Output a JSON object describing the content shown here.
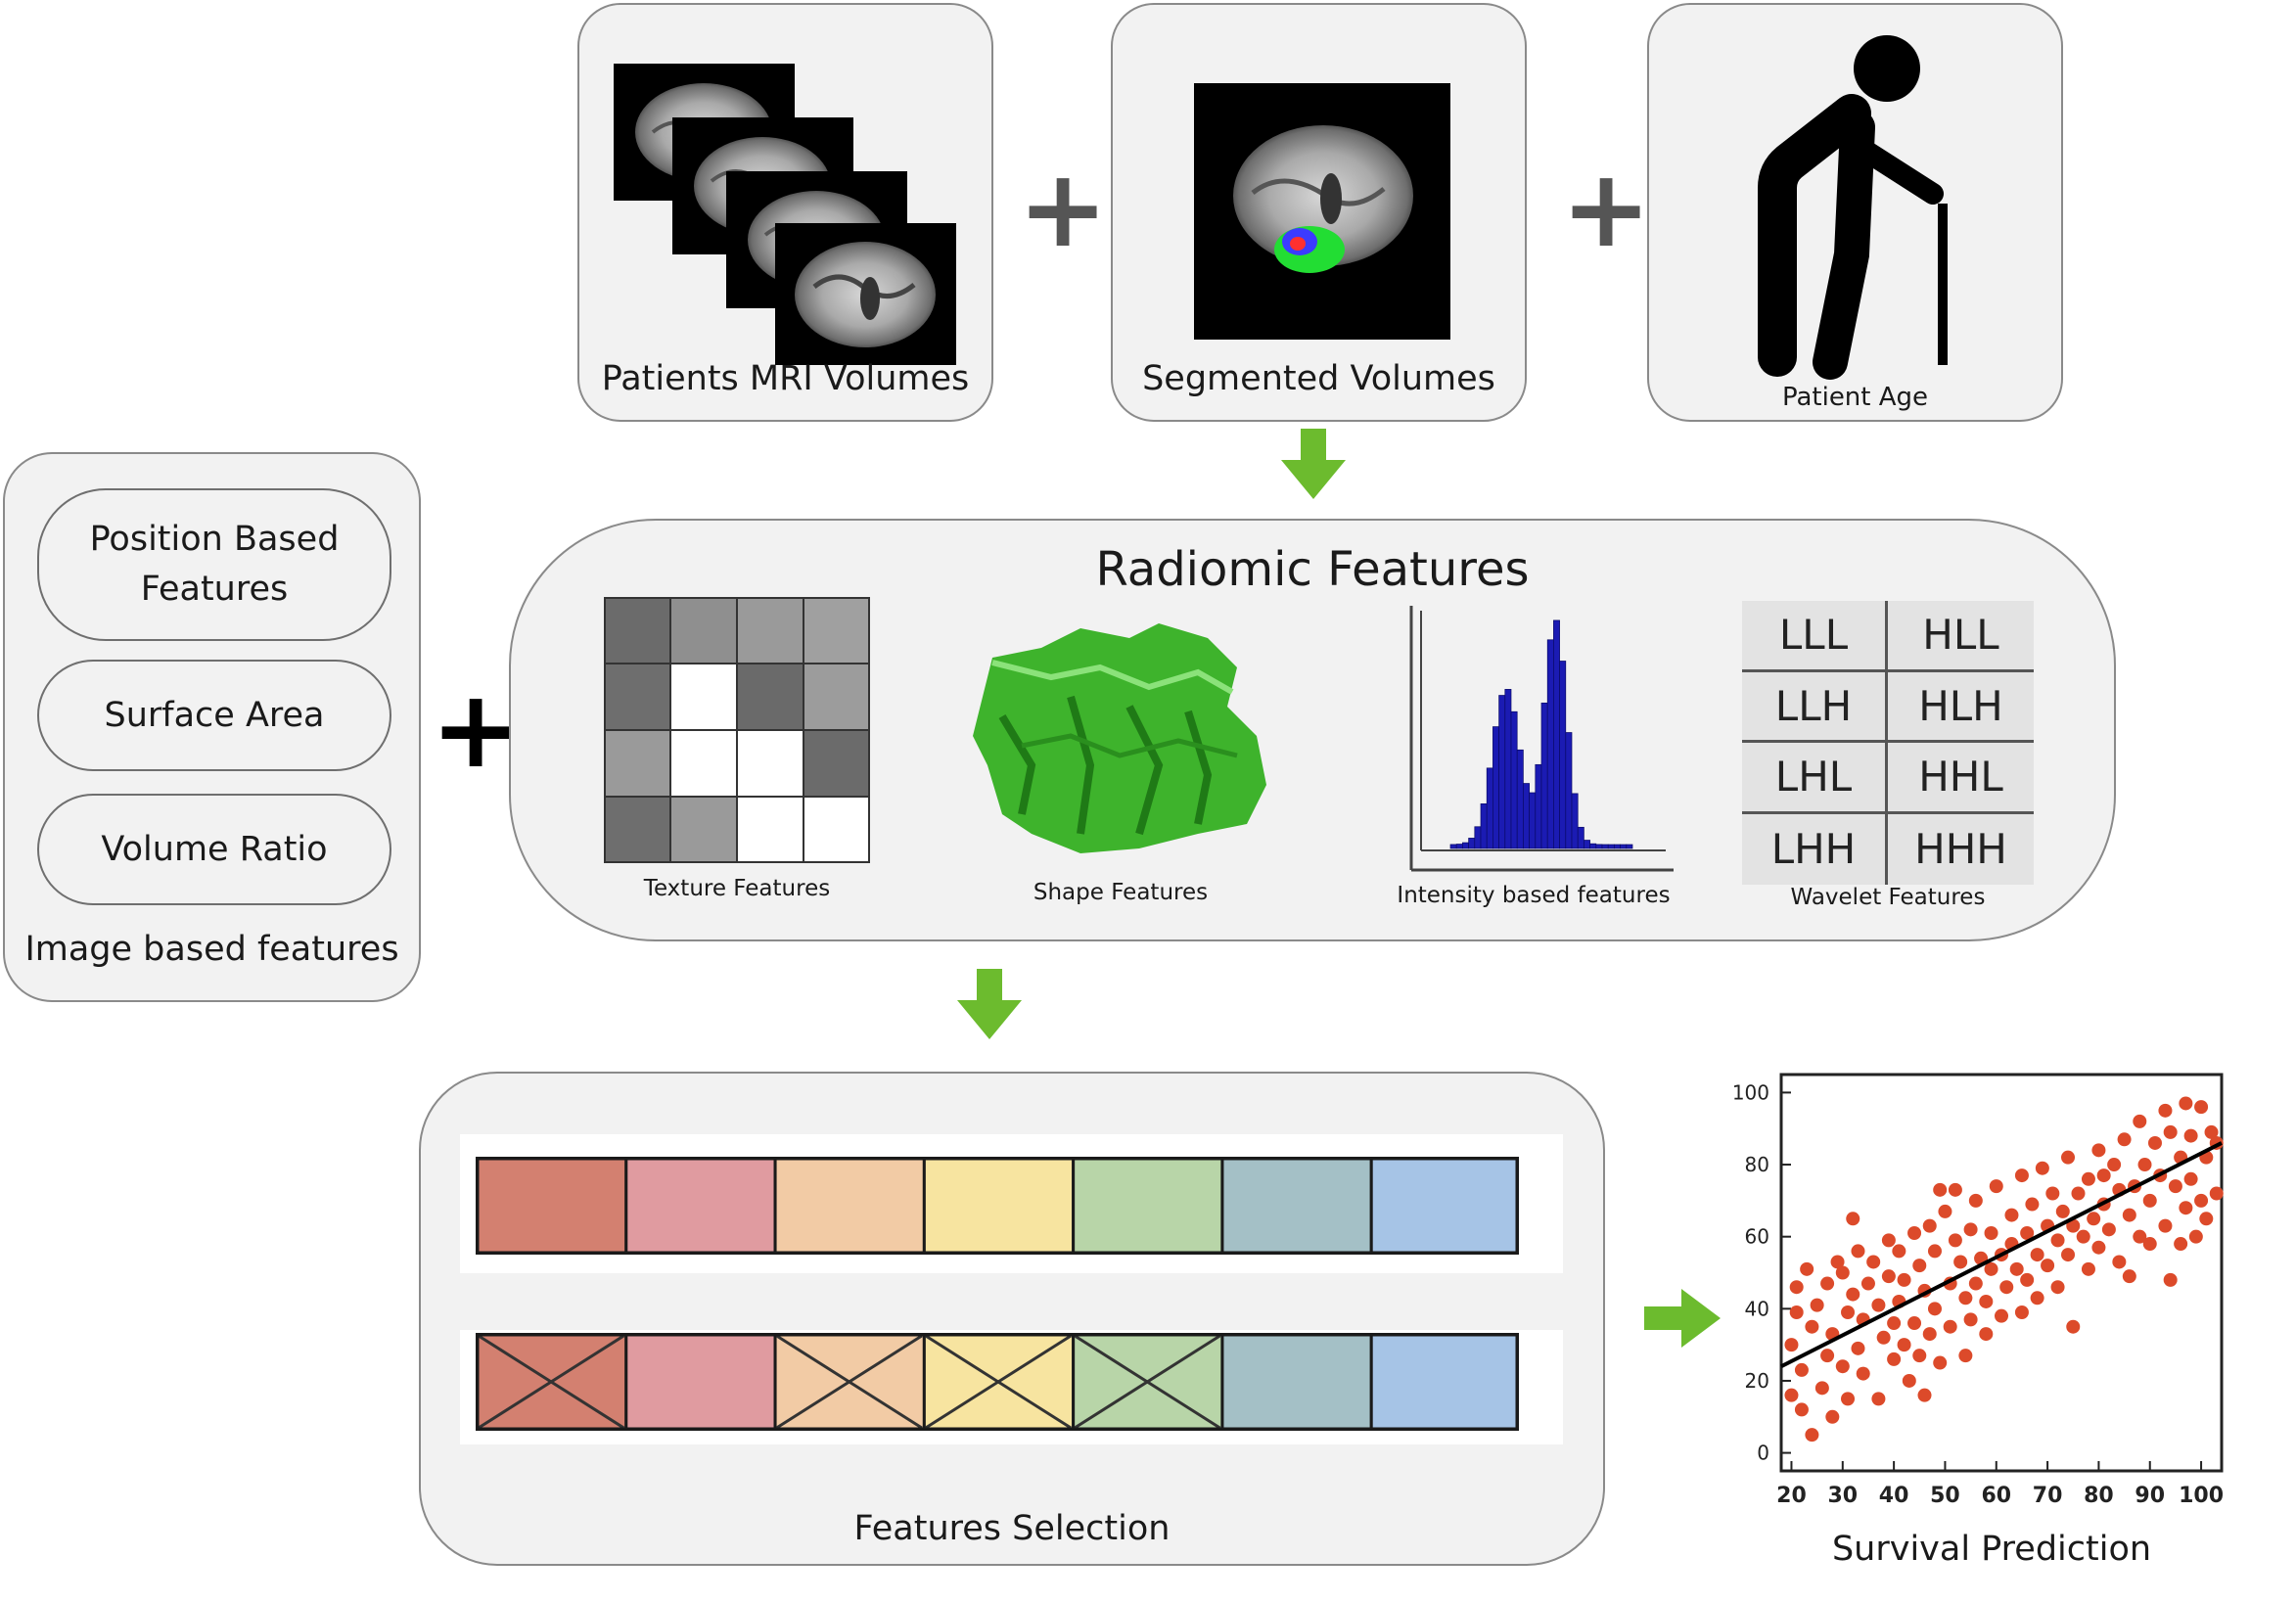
{
  "top_panels": {
    "mri_caption": "Patients MRI Volumes",
    "segmented_caption": "Segmented Volumes",
    "age_caption": "Patient Age"
  },
  "radiomic": {
    "title": "Radiomic Features",
    "texture_caption": "Texture Features",
    "shape_caption": "Shape Features",
    "intensity_caption": "Intensity based features",
    "wavelet_caption": "Wavelet Features",
    "wavelet_labels": [
      "LLL",
      "HLL",
      "LLH",
      "HLH",
      "LHL",
      "HHL",
      "LHH",
      "HHH"
    ]
  },
  "image_based": {
    "items": [
      "Position Based\nFeatures",
      "Surface Area",
      "Volume Ratio"
    ],
    "caption": "Image based features"
  },
  "selection": {
    "caption": "Features Selection",
    "colors": [
      "#d38070",
      "#e09ba0",
      "#f2cba5",
      "#f7e4a0",
      "#b8d5a8",
      "#a4c0c6",
      "#a6c4e6"
    ],
    "row2_crossed": [
      true,
      false,
      true,
      true,
      true,
      false,
      false
    ]
  },
  "prediction": {
    "caption": "Survival Prediction"
  },
  "chart_data": {
    "type": "scatter",
    "title": "",
    "xlabel": "",
    "ylabel": "",
    "xlim": [
      18,
      104
    ],
    "ylim": [
      -5,
      105
    ],
    "xticks": [
      20,
      30,
      40,
      50,
      60,
      70,
      80,
      90,
      100
    ],
    "yticks": [
      0,
      20,
      40,
      60,
      80,
      100
    ],
    "point_color": "#dc4a2a",
    "trend_line": [
      [
        18,
        24
      ],
      [
        104,
        86
      ]
    ],
    "points": [
      [
        20,
        16
      ],
      [
        20,
        30
      ],
      [
        21,
        39
      ],
      [
        21,
        46
      ],
      [
        22,
        23
      ],
      [
        22,
        12
      ],
      [
        23,
        51
      ],
      [
        24,
        35
      ],
      [
        24,
        5
      ],
      [
        25,
        41
      ],
      [
        26,
        18
      ],
      [
        27,
        47
      ],
      [
        27,
        27
      ],
      [
        28,
        33
      ],
      [
        28,
        10
      ],
      [
        29,
        53
      ],
      [
        30,
        50
      ],
      [
        30,
        24
      ],
      [
        31,
        39
      ],
      [
        31,
        15
      ],
      [
        32,
        44
      ],
      [
        32,
        65
      ],
      [
        33,
        56
      ],
      [
        33,
        29
      ],
      [
        34,
        37
      ],
      [
        34,
        22
      ],
      [
        35,
        47
      ],
      [
        36,
        53
      ],
      [
        37,
        41
      ],
      [
        37,
        15
      ],
      [
        38,
        32
      ],
      [
        39,
        49
      ],
      [
        39,
        59
      ],
      [
        40,
        36
      ],
      [
        40,
        26
      ],
      [
        41,
        56
      ],
      [
        41,
        42
      ],
      [
        42,
        48
      ],
      [
        42,
        30
      ],
      [
        43,
        20
      ],
      [
        44,
        61
      ],
      [
        44,
        36
      ],
      [
        45,
        52
      ],
      [
        45,
        27
      ],
      [
        46,
        45
      ],
      [
        46,
        16
      ],
      [
        47,
        63
      ],
      [
        47,
        33
      ],
      [
        48,
        56
      ],
      [
        48,
        40
      ],
      [
        49,
        73
      ],
      [
        49,
        25
      ],
      [
        50,
        67
      ],
      [
        51,
        47
      ],
      [
        51,
        35
      ],
      [
        52,
        59
      ],
      [
        52,
        73
      ],
      [
        53,
        53
      ],
      [
        54,
        43
      ],
      [
        54,
        27
      ],
      [
        55,
        62
      ],
      [
        55,
        37
      ],
      [
        56,
        70
      ],
      [
        56,
        47
      ],
      [
        57,
        54
      ],
      [
        58,
        42
      ],
      [
        58,
        33
      ],
      [
        59,
        61
      ],
      [
        59,
        51
      ],
      [
        60,
        74
      ],
      [
        61,
        55
      ],
      [
        61,
        38
      ],
      [
        62,
        46
      ],
      [
        63,
        66
      ],
      [
        63,
        58
      ],
      [
        64,
        51
      ],
      [
        65,
        39
      ],
      [
        65,
        77
      ],
      [
        66,
        61
      ],
      [
        66,
        48
      ],
      [
        67,
        69
      ],
      [
        68,
        55
      ],
      [
        68,
        43
      ],
      [
        69,
        79
      ],
      [
        70,
        63
      ],
      [
        70,
        52
      ],
      [
        71,
        72
      ],
      [
        72,
        46
      ],
      [
        72,
        59
      ],
      [
        73,
        67
      ],
      [
        74,
        82
      ],
      [
        74,
        55
      ],
      [
        75,
        63
      ],
      [
        75,
        35
      ],
      [
        76,
        72
      ],
      [
        77,
        60
      ],
      [
        78,
        76
      ],
      [
        78,
        51
      ],
      [
        79,
        65
      ],
      [
        80,
        84
      ],
      [
        80,
        57
      ],
      [
        81,
        69
      ],
      [
        81,
        77
      ],
      [
        82,
        62
      ],
      [
        83,
        80
      ],
      [
        84,
        73
      ],
      [
        84,
        53
      ],
      [
        85,
        87
      ],
      [
        86,
        66
      ],
      [
        86,
        49
      ],
      [
        87,
        74
      ],
      [
        88,
        92
      ],
      [
        88,
        60
      ],
      [
        89,
        80
      ],
      [
        90,
        70
      ],
      [
        90,
        58
      ],
      [
        91,
        86
      ],
      [
        92,
        77
      ],
      [
        93,
        63
      ],
      [
        93,
        95
      ],
      [
        94,
        89
      ],
      [
        94,
        48
      ],
      [
        95,
        74
      ],
      [
        96,
        82
      ],
      [
        96,
        58
      ],
      [
        97,
        97
      ],
      [
        97,
        68
      ],
      [
        98,
        88
      ],
      [
        98,
        76
      ],
      [
        99,
        60
      ],
      [
        100,
        96
      ],
      [
        100,
        70
      ],
      [
        101,
        82
      ],
      [
        101,
        65
      ],
      [
        102,
        89
      ],
      [
        103,
        72
      ],
      [
        103,
        86
      ]
    ]
  }
}
